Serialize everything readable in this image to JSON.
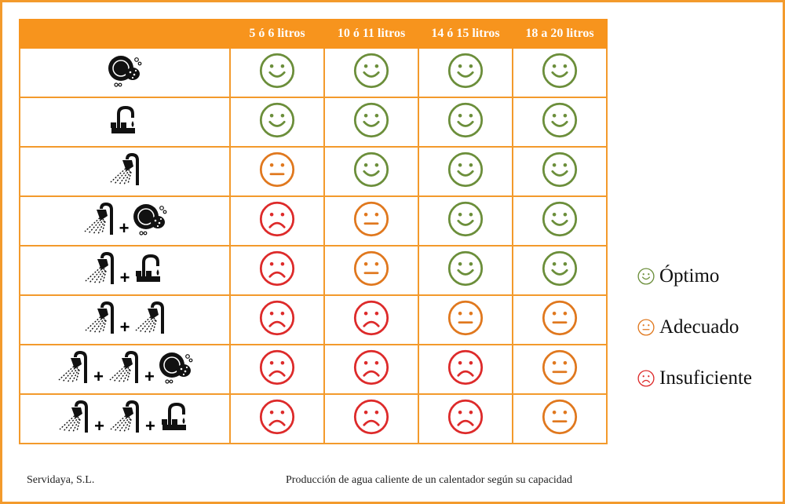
{
  "header": {
    "columns": [
      "",
      "5 ó 6 litros",
      "10 ó 11 litros",
      "14 ó 15 litros",
      "18 a 20 litros"
    ]
  },
  "icons": {
    "dishwasher": "dishwasher-icon",
    "sink": "sink-faucet-icon",
    "shower": "shower-icon",
    "plus": "+"
  },
  "rows": [
    {
      "uses": [
        "dishwasher"
      ],
      "ratings": [
        "optimo",
        "optimo",
        "optimo",
        "optimo"
      ]
    },
    {
      "uses": [
        "sink"
      ],
      "ratings": [
        "optimo",
        "optimo",
        "optimo",
        "optimo"
      ]
    },
    {
      "uses": [
        "shower"
      ],
      "ratings": [
        "adecuado",
        "optimo",
        "optimo",
        "optimo"
      ]
    },
    {
      "uses": [
        "shower",
        "dishwasher"
      ],
      "ratings": [
        "insuficiente",
        "adecuado",
        "optimo",
        "optimo"
      ]
    },
    {
      "uses": [
        "shower",
        "sink"
      ],
      "ratings": [
        "insuficiente",
        "adecuado",
        "optimo",
        "optimo"
      ]
    },
    {
      "uses": [
        "shower",
        "shower"
      ],
      "ratings": [
        "insuficiente",
        "insuficiente",
        "adecuado",
        "adecuado"
      ]
    },
    {
      "uses": [
        "shower",
        "shower",
        "dishwasher"
      ],
      "ratings": [
        "insuficiente",
        "insuficiente",
        "insuficiente",
        "adecuado"
      ]
    },
    {
      "uses": [
        "shower",
        "shower",
        "sink"
      ],
      "ratings": [
        "insuficiente",
        "insuficiente",
        "insuficiente",
        "adecuado"
      ]
    }
  ],
  "legend": {
    "optimo": {
      "label": "Óptimo",
      "color": "#6b8e3a",
      "icon": "smile-face-icon"
    },
    "adecuado": {
      "label": "Adecuado",
      "color": "#e0781e",
      "icon": "neutral-face-icon"
    },
    "insuficiente": {
      "label": "Insuficiente",
      "color": "#dd2a2a",
      "icon": "sad-face-icon"
    }
  },
  "footer": {
    "company": "Servidaya, S.L.",
    "caption": "Producción de agua caliente de un calentador según su capacidad"
  }
}
